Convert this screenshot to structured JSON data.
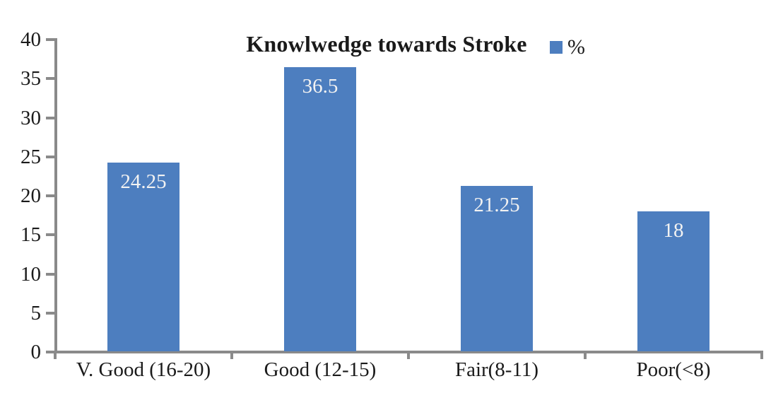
{
  "chart_data": {
    "type": "bar",
    "title": "Knowlwedge towards Stroke",
    "legend": [
      "%"
    ],
    "legend_position": "top-right",
    "categories": [
      "V. Good (16-20)",
      "Good (12-15)",
      "Fair(8-11)",
      "Poor(<8)"
    ],
    "values": [
      24.25,
      36.5,
      21.25,
      18
    ],
    "data_labels": [
      "24.25",
      "36.5",
      "21.25",
      "18"
    ],
    "xlabel": "",
    "ylabel": "",
    "ylim": [
      0,
      40
    ],
    "ytick_step": 5,
    "ytick_labels": [
      "0",
      "5",
      "10",
      "15",
      "20",
      "25",
      "30",
      "35",
      "40"
    ],
    "grid": false,
    "colors": {
      "bar": "#4d7ebf",
      "axis": "#8a8a8a",
      "text": "#1a1a1a",
      "data_label": "#f2f2f2",
      "background": "#ffffff"
    }
  }
}
